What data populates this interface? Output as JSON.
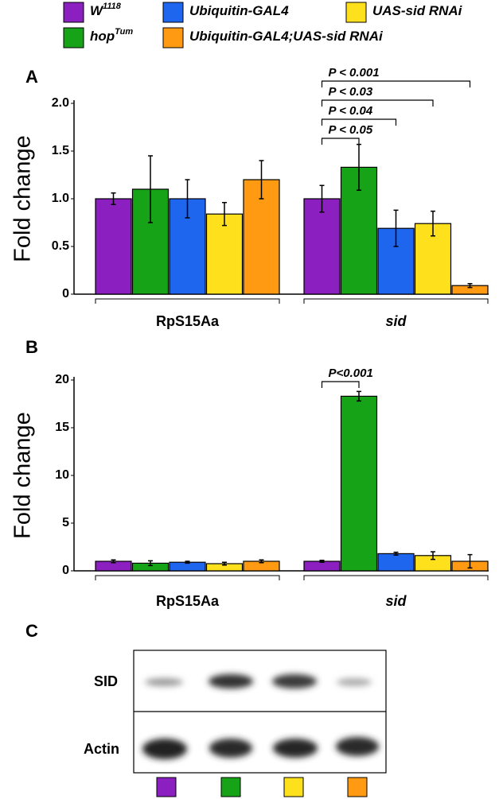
{
  "chart_data": [
    {
      "type": "bar",
      "panel_label": "A",
      "ylabel": "Fold change",
      "categories": [
        "RpS15Aa",
        "sid"
      ],
      "series": [
        {
          "name": "W",
          "name_sup": "1118",
          "color": "#8b1fc0",
          "values": [
            1.0,
            1.0
          ],
          "errors": [
            0.06,
            0.14
          ]
        },
        {
          "name": "hop",
          "name_sup": "Tum",
          "color": "#17a317",
          "values": [
            1.1,
            1.33
          ],
          "errors": [
            0.35,
            0.24
          ]
        },
        {
          "name": "Ubiquitin-GAL4",
          "color": "#1e66ee",
          "values": [
            1.0,
            0.69
          ],
          "errors": [
            0.2,
            0.19
          ]
        },
        {
          "name": "UAS-sid RNAi",
          "color": "#ffe01c",
          "values": [
            0.84,
            0.74
          ],
          "errors": [
            0.12,
            0.13
          ]
        },
        {
          "name": "Ubiquitin-GAL4;UAS-sid RNAi",
          "color": "#ff9a12",
          "values": [
            1.2,
            0.09
          ],
          "errors": [
            0.2,
            0.02
          ]
        }
      ],
      "ylim": [
        0,
        2
      ],
      "yticks": [
        0,
        0.5,
        {
          "value": 1,
          "label": "1.0"
        },
        1.5,
        {
          "value": 2,
          "label": "2.0"
        }
      ],
      "annotations": [
        "P < 0.001",
        "P < 0.03",
        "P < 0.04",
        "P < 0.05"
      ]
    },
    {
      "type": "bar",
      "panel_label": "B",
      "ylabel": "Fold change",
      "categories": [
        "RpS15Aa",
        "sid"
      ],
      "series": [
        {
          "color": "#8b1fc0",
          "values": [
            1.0,
            1.0
          ],
          "errors": [
            0.15,
            0.1
          ]
        },
        {
          "color": "#17a317",
          "values": [
            0.8,
            18.3
          ],
          "errors": [
            0.25,
            0.5
          ]
        },
        {
          "color": "#1e66ee",
          "values": [
            0.9,
            1.8
          ],
          "errors": [
            0.1,
            0.15
          ]
        },
        {
          "color": "#ffe01c",
          "values": [
            0.75,
            1.6
          ],
          "errors": [
            0.15,
            0.4
          ]
        },
        {
          "color": "#ff9a12",
          "values": [
            1.0,
            1.0
          ],
          "errors": [
            0.15,
            0.7
          ]
        }
      ],
      "ylim": [
        0,
        20
      ],
      "yticks": [
        0,
        5,
        10,
        15,
        20
      ],
      "annotations": [
        "P<0.001"
      ]
    }
  ],
  "blot": {
    "panel_label": "C",
    "rows": [
      "SID",
      "Actin"
    ]
  }
}
